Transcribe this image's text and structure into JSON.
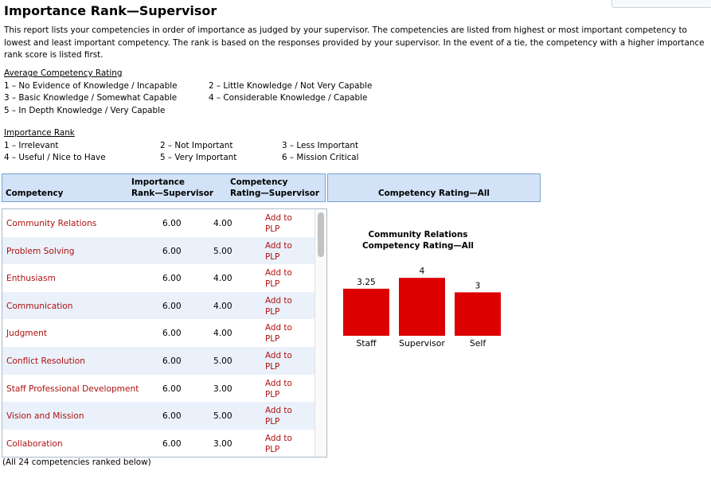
{
  "page_title": "Importance Rank—Supervisor",
  "intro": "This report lists your competencies in order of importance as judged by your supervisor. The competencies are listed from highest or most important competency to lowest and least important competency. The rank is based on the responses provided by your supervisor. In the event of a tie, the competency with a higher importance rank score is listed first.",
  "avg_legend": {
    "caption": "Average Competency Rating",
    "items": [
      "1 – No Evidence of Knowledge / Incapable",
      "2 – Little Knowledge / Not Very Capable",
      "3 – Basic Knowledge / Somewhat Capable",
      "4 – Considerable Knowledge / Capable",
      "5 – In Depth Knowledge / Very Capable"
    ]
  },
  "imp_legend": {
    "caption": "Importance Rank",
    "items": [
      "1 – Irrelevant",
      "2 – Not Important",
      "3 – Less Important",
      "4 – Useful / Nice to Have",
      "5 – Very Important",
      "6 – Mission Critical"
    ]
  },
  "table": {
    "headers": {
      "competency": "Competency",
      "importance_l1": "Importance",
      "importance_l2": "Rank—Supervisor",
      "rating_l1": "Competency",
      "rating_l2": "Rating—Supervisor",
      "rating_all": "Competency Rating—All"
    },
    "plp_l1": "Add to",
    "plp_l2": "PLP",
    "rows": [
      {
        "competency": "Community Relations",
        "importance": "6.00",
        "rating": "4.00"
      },
      {
        "competency": "Problem Solving",
        "importance": "6.00",
        "rating": "5.00"
      },
      {
        "competency": "Enthusiasm",
        "importance": "6.00",
        "rating": "4.00"
      },
      {
        "competency": "Communication",
        "importance": "6.00",
        "rating": "4.00"
      },
      {
        "competency": "Judgment",
        "importance": "6.00",
        "rating": "4.00"
      },
      {
        "competency": "Conflict Resolution",
        "importance": "6.00",
        "rating": "5.00"
      },
      {
        "competency": "Staff Professional Development",
        "importance": "6.00",
        "rating": "3.00"
      },
      {
        "competency": "Vision and Mission",
        "importance": "6.00",
        "rating": "5.00"
      },
      {
        "competency": "Collaboration",
        "importance": "6.00",
        "rating": "3.00"
      }
    ],
    "footnote": "(All 24 competencies ranked below)"
  },
  "chart_data": {
    "type": "bar",
    "title_l1": "Community Relations",
    "title_l2": "Competency Rating—All",
    "categories": [
      "Staff",
      "Supervisor",
      "Self"
    ],
    "values": [
      3.25,
      4,
      3
    ],
    "value_labels": [
      "3.25",
      "4",
      "3"
    ],
    "bar_color": "#dd0000",
    "ylim": [
      0,
      5
    ]
  }
}
